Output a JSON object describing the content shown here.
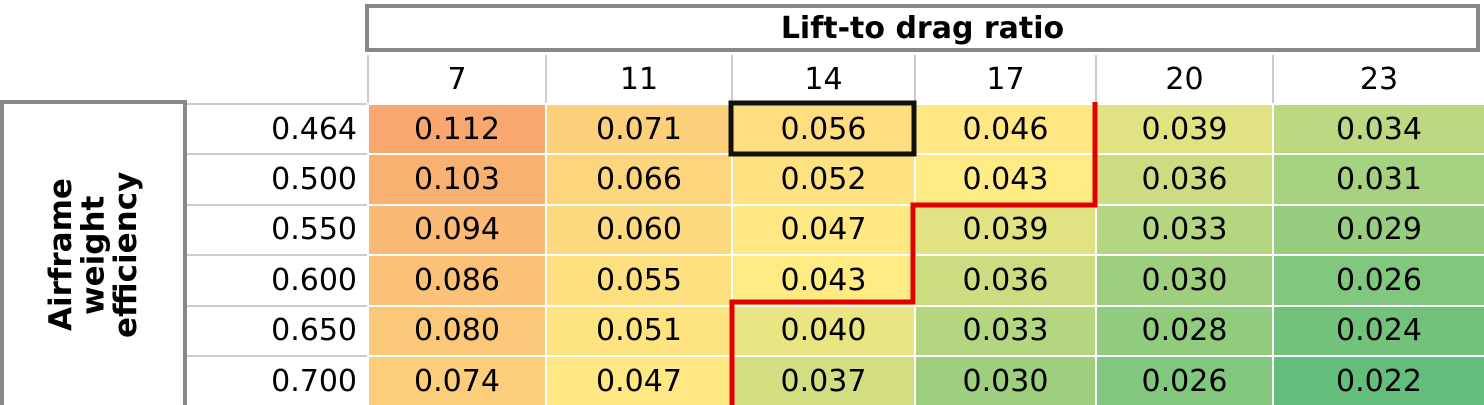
{
  "header": {
    "title": "Lift-to drag ratio",
    "columns": [
      "7",
      "11",
      "14",
      "17",
      "20",
      "23"
    ]
  },
  "row_header": "Airframe weight efficiency",
  "rows": [
    {
      "label": "0.464",
      "cells": [
        "0.112",
        "0.071",
        "0.056",
        "0.046",
        "0.039",
        "0.034"
      ]
    },
    {
      "label": "0.500",
      "cells": [
        "0.103",
        "0.066",
        "0.052",
        "0.043",
        "0.036",
        "0.031"
      ]
    },
    {
      "label": "0.550",
      "cells": [
        "0.094",
        "0.060",
        "0.047",
        "0.039",
        "0.033",
        "0.029"
      ]
    },
    {
      "label": "0.600",
      "cells": [
        "0.086",
        "0.055",
        "0.043",
        "0.036",
        "0.030",
        "0.026"
      ]
    },
    {
      "label": "0.650",
      "cells": [
        "0.080",
        "0.051",
        "0.040",
        "0.033",
        "0.028",
        "0.024"
      ]
    },
    {
      "label": "0.700",
      "cells": [
        "0.074",
        "0.047",
        "0.037",
        "0.030",
        "0.026",
        "0.022"
      ]
    }
  ]
}
